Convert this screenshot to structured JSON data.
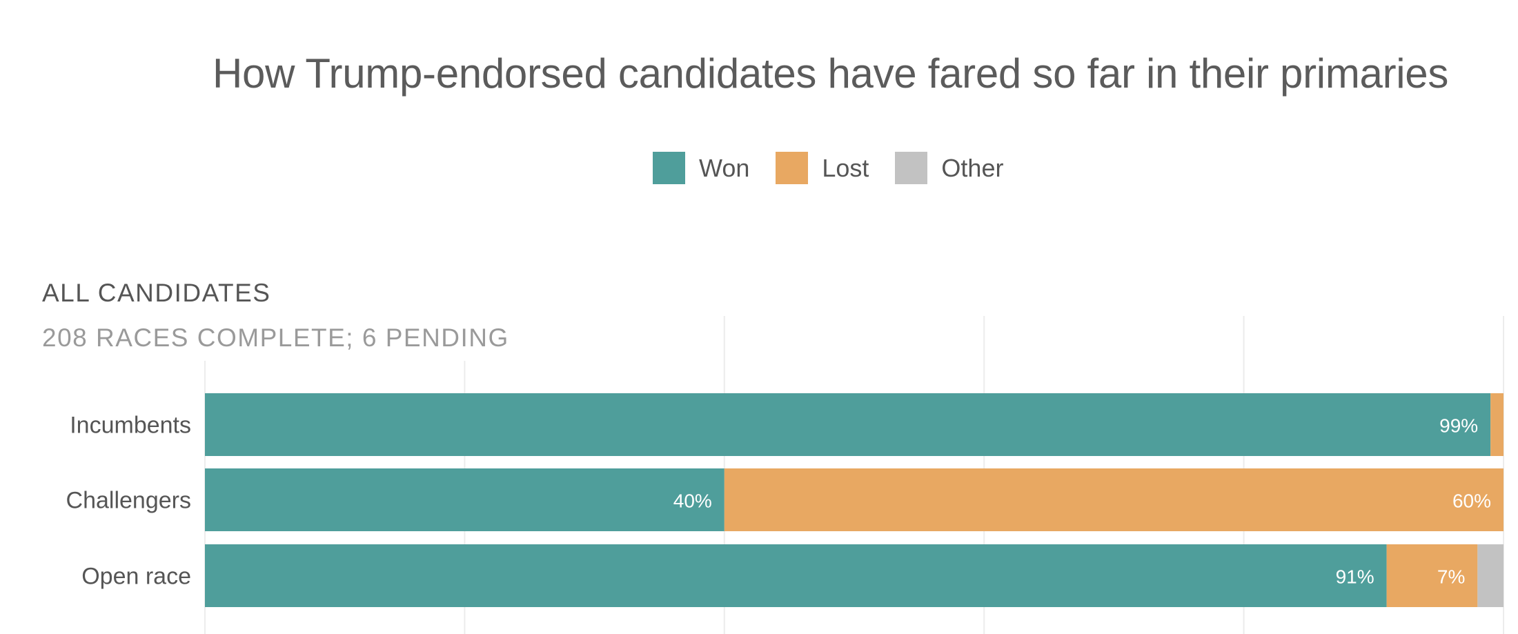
{
  "chart_data": {
    "type": "bar",
    "orientation": "horizontal",
    "stacked": true,
    "title": "How Trump-endorsed candidates have fared so far in their primaries",
    "section_title": "ALL CANDIDATES",
    "section_subtitle": "208 RACES COMPLETE; 6 PENDING",
    "categories": [
      "Incumbents",
      "Challengers",
      "Open race"
    ],
    "series": [
      {
        "name": "Won",
        "color": "#4f9e9b",
        "values": [
          99,
          40,
          91
        ],
        "labels": [
          "99%",
          "40%",
          "91%"
        ]
      },
      {
        "name": "Lost",
        "color": "#e8a862",
        "values": [
          1,
          60,
          7
        ],
        "labels": [
          "",
          "60%",
          "7%"
        ]
      },
      {
        "name": "Other",
        "color": "#c2c2c2",
        "values": [
          0,
          0,
          2
        ],
        "labels": [
          "",
          "",
          ""
        ]
      }
    ],
    "xlim": [
      0,
      100
    ],
    "grid": true,
    "legend_position": "top-center"
  }
}
